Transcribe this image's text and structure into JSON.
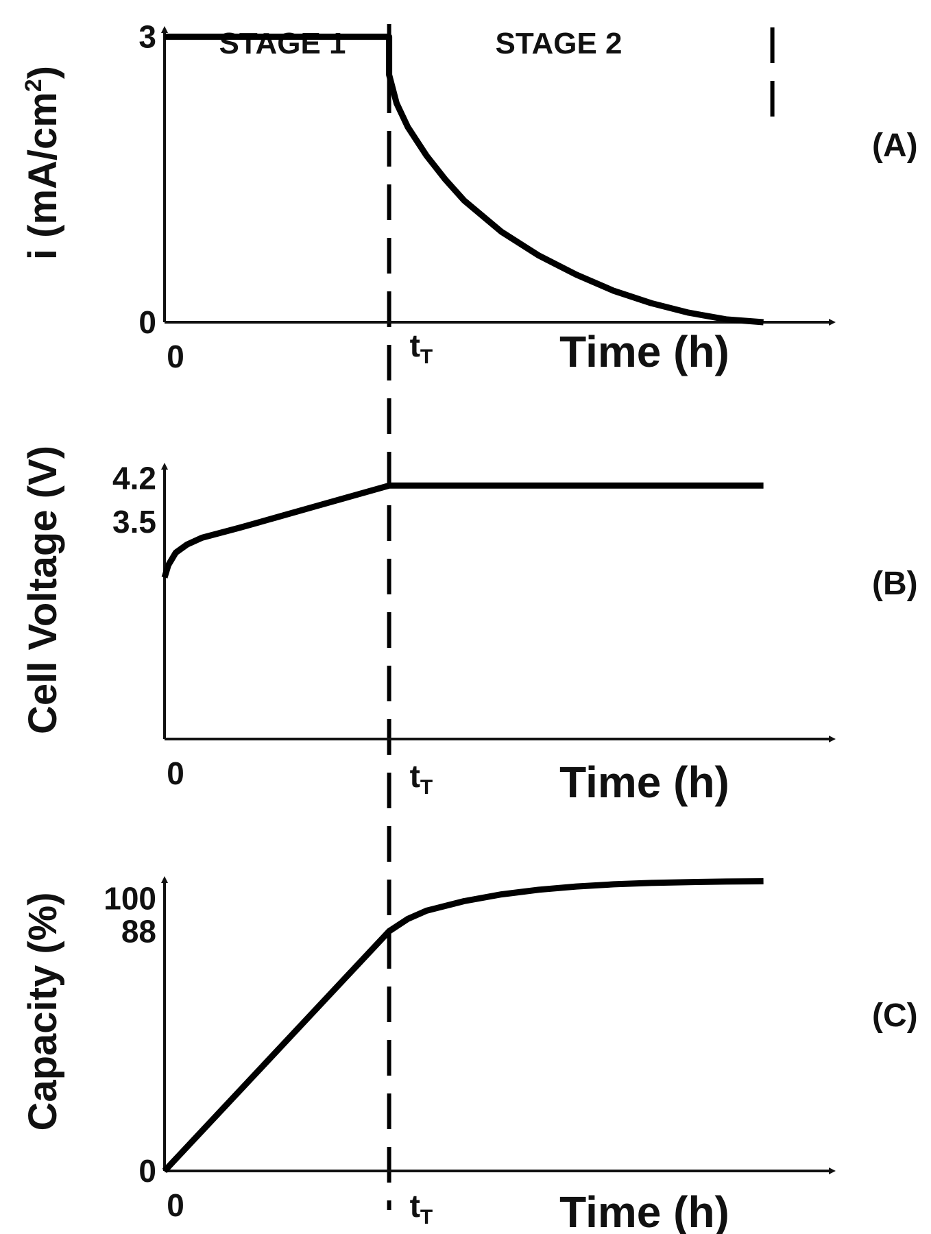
{
  "stages": [
    "STAGE 1",
    "STAGE 2"
  ],
  "transition_label": {
    "base": "t",
    "sub": "T"
  },
  "chart_data": [
    {
      "panel": "(A)",
      "type": "line",
      "ylabel": "i (mA/cm",
      "ylabel_sup": "2",
      "ylabel_close": ")",
      "xlabel": "Time (h)",
      "x_ticks": [
        "0"
      ],
      "y_ticks": [
        {
          "value": 0,
          "label": "0"
        },
        {
          "value": 3,
          "label": "3"
        }
      ],
      "ylim": [
        0,
        3.35
      ],
      "xlim": [
        0,
        1.65
      ],
      "t_T": 0.6,
      "x_end": 1.6,
      "series": [
        {
          "x": [
            0,
            0.6,
            0.6,
            0.62,
            0.65,
            0.7,
            0.75,
            0.8,
            0.9,
            1.0,
            1.1,
            1.2,
            1.3,
            1.4,
            1.5,
            1.6
          ],
          "y": [
            3,
            3,
            2.6,
            2.3,
            2.05,
            1.75,
            1.5,
            1.28,
            0.95,
            0.7,
            0.5,
            0.33,
            0.2,
            0.1,
            0.03,
            0
          ]
        }
      ]
    },
    {
      "panel": "(B)",
      "type": "line",
      "ylabel": "Cell Voltage (V)",
      "xlabel": "Time (h)",
      "x_ticks": [
        "0"
      ],
      "y_ticks": [
        {
          "value": 3.5,
          "label": "3.5"
        },
        {
          "value": 4.2,
          "label": "4.2"
        }
      ],
      "ylim": [
        0,
        4.8
      ],
      "xlim": [
        0,
        1.65
      ],
      "t_T": 0.6,
      "x_end": 1.6,
      "series": [
        {
          "x": [
            0,
            0.01,
            0.03,
            0.06,
            0.1,
            0.2,
            0.3,
            0.4,
            0.5,
            0.6,
            1.6
          ],
          "y": [
            2.6,
            2.8,
            3.0,
            3.13,
            3.24,
            3.4,
            3.57,
            3.74,
            3.91,
            4.08,
            4.08
          ]
        }
      ]
    },
    {
      "panel": "(C)",
      "type": "line",
      "ylabel": "Capacity (%)",
      "xlabel": "Time (h)",
      "x_ticks": [
        "0"
      ],
      "y_ticks": [
        {
          "value": 0,
          "label": "0"
        },
        {
          "value": 88,
          "label": "88"
        },
        {
          "value": 100,
          "label": "100"
        }
      ],
      "ylim": [
        0,
        117
      ],
      "xlim": [
        0,
        1.65
      ],
      "t_T": 0.6,
      "x_end": 1.6,
      "series": [
        {
          "x": [
            0,
            0.6,
            0.65,
            0.7,
            0.8,
            0.9,
            1.0,
            1.1,
            1.2,
            1.3,
            1.4,
            1.5,
            1.6
          ],
          "y": [
            0,
            88,
            92.5,
            95.5,
            99,
            101.5,
            103.2,
            104.4,
            105.2,
            105.7,
            106,
            106.2,
            106.3
          ]
        }
      ]
    }
  ]
}
